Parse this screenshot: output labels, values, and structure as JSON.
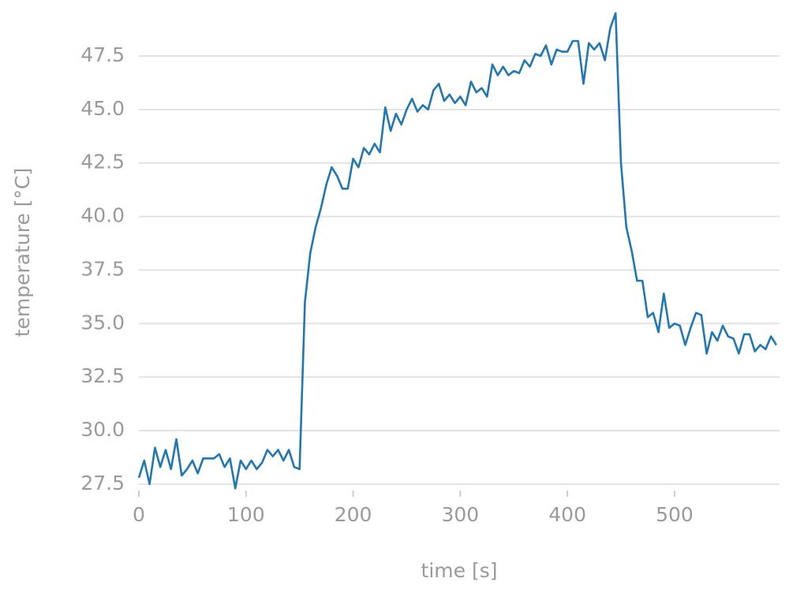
{
  "chart_data": {
    "type": "line",
    "x_label": "time [s]",
    "y_label": "temperature [°C]",
    "xlim": [
      0,
      598
    ],
    "ylim": [
      27.2,
      49.5
    ],
    "xticks": [
      0,
      100,
      200,
      300,
      400,
      500
    ],
    "yticks": [
      27.5,
      {
        "value": 30,
        "label": "30.0"
      },
      32.5,
      {
        "value": 35,
        "label": "35.0"
      },
      37.5,
      {
        "value": 40,
        "label": "40.0"
      },
      42.5,
      {
        "value": 45,
        "label": "45.0"
      },
      47.5
    ],
    "grid": true,
    "x": [
      0,
      5,
      10,
      15,
      20,
      25,
      30,
      35,
      40,
      45,
      50,
      55,
      60,
      65,
      70,
      75,
      80,
      85,
      90,
      95,
      100,
      105,
      110,
      115,
      120,
      125,
      130,
      135,
      140,
      145,
      150,
      155,
      160,
      165,
      170,
      175,
      180,
      185,
      190,
      195,
      200,
      205,
      210,
      215,
      220,
      225,
      230,
      235,
      240,
      245,
      250,
      255,
      260,
      265,
      270,
      275,
      280,
      285,
      290,
      295,
      300,
      305,
      310,
      315,
      320,
      325,
      330,
      335,
      340,
      345,
      350,
      355,
      360,
      365,
      370,
      375,
      380,
      385,
      390,
      395,
      400,
      405,
      410,
      415,
      420,
      425,
      430,
      435,
      440,
      445,
      450,
      455,
      460,
      465,
      470,
      475,
      480,
      485,
      490,
      495,
      500,
      505,
      510,
      515,
      520,
      525,
      530,
      535,
      540,
      545,
      550,
      555,
      560,
      565,
      570,
      575,
      580,
      585,
      590,
      595
    ],
    "series": [
      {
        "name": "temperature",
        "color": "#1f77b4",
        "values": [
          27.8,
          28.6,
          27.5,
          29.2,
          28.3,
          29.1,
          28.2,
          29.6,
          27.9,
          28.2,
          28.6,
          28.0,
          28.7,
          28.7,
          28.7,
          28.9,
          28.3,
          28.7,
          27.3,
          28.6,
          28.2,
          28.6,
          28.2,
          28.5,
          29.1,
          28.8,
          29.1,
          28.6,
          29.1,
          28.3,
          28.2,
          36.0,
          38.3,
          39.5,
          40.4,
          41.5,
          42.3,
          41.9,
          41.3,
          41.3,
          42.7,
          42.3,
          43.2,
          42.9,
          43.4,
          43.0,
          45.1,
          44.0,
          44.8,
          44.3,
          45.0,
          45.5,
          44.9,
          45.2,
          45.0,
          45.9,
          46.2,
          45.4,
          45.7,
          45.3,
          45.6,
          45.2,
          46.3,
          45.8,
          46.0,
          45.6,
          47.1,
          46.6,
          47.0,
          46.6,
          46.8,
          46.7,
          47.3,
          47.0,
          47.6,
          47.5,
          48.0,
          47.1,
          47.8,
          47.7,
          47.7,
          48.2,
          48.2,
          46.2,
          48.1,
          47.8,
          48.1,
          47.3,
          48.8,
          49.5,
          42.5,
          39.5,
          38.4,
          37.0,
          37.0,
          35.3,
          35.5,
          34.6,
          36.4,
          34.8,
          35.0,
          34.9,
          34.0,
          34.8,
          35.5,
          35.4,
          33.6,
          34.6,
          34.2,
          34.9,
          34.4,
          34.3,
          33.6,
          34.5,
          34.5,
          33.7,
          34.0,
          33.8,
          34.4,
          34.0
        ]
      }
    ]
  }
}
